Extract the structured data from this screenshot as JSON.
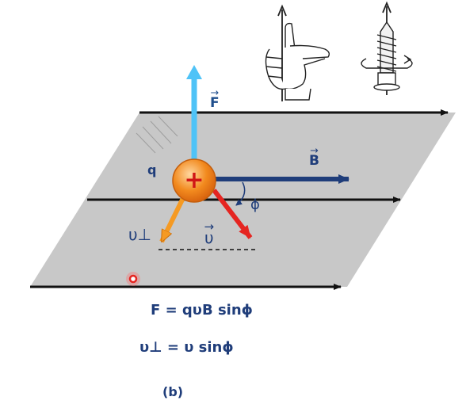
{
  "labels": {
    "force": "F",
    "field": "B",
    "charge": "q",
    "charge_sign": "+",
    "angle": "ϕ",
    "velocity": "υ",
    "velocity_perp": "υ⊥"
  },
  "equations": {
    "force": "F = qυB sinϕ",
    "velocity_perp": "υ⊥ = υ sinϕ"
  },
  "caption": "(b)",
  "colors": {
    "plane": "#c8c8c8",
    "field_lines": "#111111",
    "force_arrow": "#4fc3f7",
    "field_arrow": "#1f3d7a",
    "velocity_arrow": "#e52521",
    "perp_arrow": "#f59a23",
    "charge_fill": "#f28a1e",
    "text": "#1f3d7a"
  },
  "icons": {
    "hand_rule": "right-hand-grip-icon",
    "screw_rule": "right-hand-screw-icon"
  }
}
